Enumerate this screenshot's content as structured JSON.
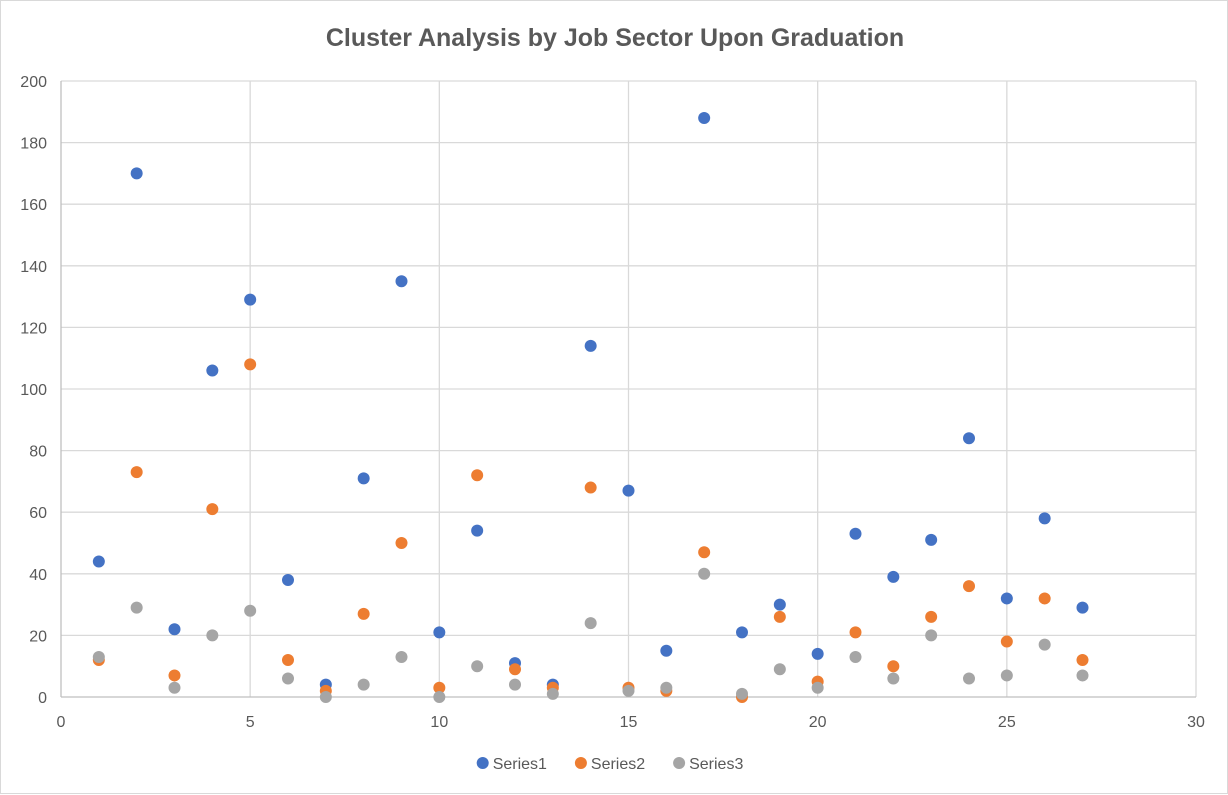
{
  "chart_data": {
    "type": "scatter",
    "title": "Cluster Analysis by Job Sector Upon Graduation",
    "xlabel": "",
    "ylabel": "",
    "xlim": [
      0,
      30
    ],
    "ylim": [
      0,
      200
    ],
    "x_ticks": [
      0,
      5,
      10,
      15,
      20,
      25,
      30
    ],
    "y_ticks": [
      0,
      20,
      40,
      60,
      80,
      100,
      120,
      140,
      160,
      180,
      200
    ],
    "grid": true,
    "legend_position": "bottom",
    "series": [
      {
        "name": "Series1",
        "color": "#4472c4",
        "x": [
          1,
          2,
          3,
          4,
          5,
          6,
          7,
          8,
          9,
          10,
          11,
          12,
          13,
          14,
          15,
          16,
          17,
          18,
          19,
          20,
          21,
          22,
          23,
          24,
          25,
          26,
          27
        ],
        "y": [
          44,
          170,
          22,
          106,
          129,
          38,
          4,
          71,
          135,
          21,
          54,
          11,
          4,
          114,
          67,
          15,
          188,
          21,
          30,
          14,
          53,
          39,
          51,
          84,
          32,
          58,
          29
        ]
      },
      {
        "name": "Series2",
        "color": "#ed7d31",
        "x": [
          1,
          2,
          3,
          4,
          5,
          6,
          7,
          8,
          9,
          10,
          11,
          12,
          13,
          14,
          15,
          16,
          17,
          18,
          19,
          20,
          21,
          22,
          23,
          24,
          25,
          26,
          27
        ],
        "y": [
          12,
          73,
          7,
          61,
          108,
          12,
          2,
          27,
          50,
          3,
          72,
          9,
          3,
          68,
          3,
          2,
          47,
          0,
          26,
          5,
          21,
          10,
          26,
          36,
          18,
          32,
          12
        ]
      },
      {
        "name": "Series3",
        "color": "#a5a5a5",
        "x": [
          1,
          2,
          3,
          4,
          5,
          6,
          7,
          8,
          9,
          10,
          11,
          12,
          13,
          14,
          15,
          16,
          17,
          18,
          19,
          20,
          21,
          22,
          23,
          24,
          25,
          26,
          27
        ],
        "y": [
          13,
          29,
          3,
          20,
          28,
          6,
          0,
          4,
          13,
          0,
          10,
          4,
          1,
          24,
          2,
          3,
          40,
          1,
          9,
          3,
          13,
          6,
          20,
          6,
          7,
          17,
          7
        ]
      }
    ]
  }
}
